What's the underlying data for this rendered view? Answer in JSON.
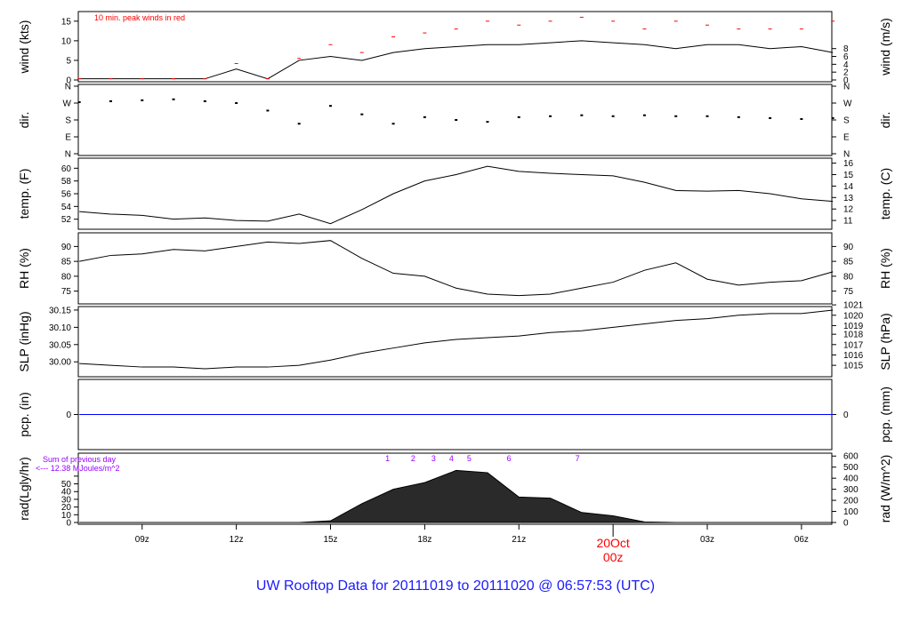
{
  "title": "UW Rooftop Data for 20111019  to  20111020 @ 06:57:53  (UTC)",
  "chart_data": [
    {
      "type": "line",
      "panel": "wind",
      "ylabel": "wind (kts)",
      "ylabel_right": "wind (m/s)",
      "ylim": [
        0,
        17
      ],
      "yticks": [
        0,
        5,
        10,
        15
      ],
      "yticks_right": {
        "values": [
          0,
          2,
          4,
          6,
          8
        ],
        "labels": [
          "0",
          "2",
          "4",
          "6",
          "8"
        ]
      },
      "annotation": "10 min. peak winds in red",
      "series": [
        {
          "name": "wind",
          "color": "#000000",
          "values": [
            0.3,
            0.3,
            0.3,
            0.3,
            0.3,
            2.8,
            0.3,
            5,
            6,
            5,
            7,
            8,
            8.5,
            9,
            9,
            9.5,
            10,
            9.5,
            9,
            8,
            9,
            9,
            8,
            8.5,
            7
          ]
        },
        {
          "name": "10 min. peak winds",
          "color": "#ff0000",
          "values": [
            0.3,
            0.3,
            0.3,
            0.3,
            0.3,
            4.2,
            0.3,
            5.5,
            9,
            7,
            11,
            12,
            13,
            15,
            14,
            15,
            16,
            15,
            13,
            15,
            14,
            13,
            13,
            13,
            15
          ]
        }
      ]
    },
    {
      "type": "scatter",
      "panel": "dir",
      "ylabel": "dir.",
      "ylabel_right": "dir.",
      "ylim": [
        0,
        360
      ],
      "yticks": [
        0,
        90,
        180,
        270,
        360
      ],
      "ytick_labels": [
        "N",
        "E",
        "S",
        "W",
        "N"
      ],
      "series": [
        {
          "values": [
            275,
            280,
            285,
            290,
            280,
            270,
            230,
            160,
            255,
            210,
            160,
            195,
            180,
            170,
            195,
            200,
            205,
            200,
            205,
            200,
            200,
            195,
            190,
            185,
            190
          ]
        }
      ]
    },
    {
      "type": "line",
      "panel": "temp",
      "ylabel": "temp. (F)",
      "ylabel_right": "temp. (C)",
      "ylim": [
        50.7,
        61.3
      ],
      "yticks": [
        52,
        54,
        56,
        58,
        60
      ],
      "yticks_right": {
        "values": [
          51.8,
          53.6,
          55.4,
          57.2,
          59,
          60.8
        ],
        "labels": [
          "11",
          "12",
          "13",
          "14",
          "15",
          "16"
        ]
      },
      "series": [
        {
          "values": [
            53.2,
            52.8,
            52.6,
            52,
            52.2,
            51.8,
            51.7,
            52.8,
            51.3,
            53.5,
            56,
            58,
            59,
            60.3,
            59.5,
            59.2,
            59,
            58.8,
            57.8,
            56.5,
            56.4,
            56.5,
            56,
            55.2,
            54.8
          ]
        }
      ]
    },
    {
      "type": "line",
      "panel": "rh",
      "ylabel": "RH (%)",
      "ylabel_right": "RH (%)",
      "ylim": [
        71.3,
        94
      ],
      "yticks": [
        75,
        80,
        85,
        90
      ],
      "yticks_right": {
        "values": [
          75,
          80,
          85,
          90
        ],
        "labels": [
          "75",
          "80",
          "85",
          "90"
        ]
      },
      "series": [
        {
          "values": [
            85,
            87,
            87.5,
            89,
            88.5,
            90,
            91.5,
            91,
            92,
            86,
            81,
            80,
            76,
            74,
            73.5,
            74,
            76,
            78,
            82,
            84.5,
            79,
            77,
            78,
            78.5,
            81.5
          ]
        }
      ]
    },
    {
      "type": "line",
      "panel": "slp",
      "ylabel": "SLP (inHg)",
      "ylabel_right": "SLP (hPa)",
      "ylim": [
        29.962,
        30.155
      ],
      "yticks": [
        30.0,
        30.05,
        30.1,
        30.15
      ],
      "ytick_labels": [
        "30.00",
        "30.05",
        "30.10",
        "30.15"
      ],
      "yticks_right": {
        "values": [
          29.99,
          30.02,
          30.05,
          30.08,
          30.105,
          30.135,
          30.165
        ],
        "labels": [
          "1015",
          "1016",
          "1017",
          "1018",
          "1019",
          "1020",
          "1021"
        ]
      },
      "series": [
        {
          "values": [
            29.995,
            29.99,
            29.985,
            29.985,
            29.98,
            29.985,
            29.985,
            29.99,
            30.005,
            30.025,
            30.04,
            30.055,
            30.065,
            30.07,
            30.075,
            30.085,
            30.09,
            30.1,
            30.11,
            30.12,
            30.125,
            30.135,
            30.14,
            30.14,
            30.15
          ]
        }
      ]
    },
    {
      "type": "line",
      "panel": "pcp",
      "ylabel": "pcp. (in)",
      "ylabel_right": "pcp. (mm)",
      "ylim": [
        -1,
        1
      ],
      "yticks": [
        0
      ],
      "yticks_right": {
        "values": [
          0
        ],
        "labels": [
          "0"
        ]
      },
      "series": [
        {
          "color": "#0000ff",
          "values": [
            0,
            0,
            0,
            0,
            0,
            0,
            0,
            0,
            0,
            0,
            0,
            0,
            0,
            0,
            0,
            0,
            0,
            0,
            0,
            0,
            0,
            0,
            0,
            0,
            0
          ]
        }
      ]
    },
    {
      "type": "area",
      "panel": "rad",
      "ylabel": "rad(Lgly/hr)",
      "ylabel_right": "rad (W/m^2)",
      "ylim": [
        0,
        610
      ],
      "yticks": [
        0,
        69.8,
        139.5,
        209.3,
        279,
        348.8,
        418.6
      ],
      "ytick_labels": [
        "0",
        "10",
        "20",
        "30",
        "40",
        "50",
        ""
      ],
      "yticks_right": {
        "values": [
          0,
          100,
          200,
          300,
          400,
          500,
          600
        ],
        "labels": [
          "0",
          "100",
          "200",
          "300",
          "400",
          "500",
          "600"
        ]
      },
      "annotation": [
        "Sum of previous day",
        "<--- 12.38 MJoules/m^2"
      ],
      "markers": {
        "labels": [
          "1",
          "2",
          "3",
          "4",
          "5",
          "6",
          "7"
        ],
        "times": [
          "19 16:49",
          "19 17:38",
          "19 18:17",
          "19 18:51",
          "19 19:25",
          "19 20:41",
          "19 22:52"
        ]
      },
      "series": [
        {
          "values": [
            0,
            0,
            0,
            0,
            0,
            0,
            0,
            0,
            15,
            170,
            300,
            360,
            470,
            450,
            230,
            220,
            90,
            60,
            5,
            0,
            0,
            0,
            0,
            0,
            0
          ]
        }
      ]
    }
  ],
  "x": [
    "19 07:00",
    "19 08:00",
    "19 09:00",
    "19 10:00",
    "19 11:00",
    "19 12:00",
    "19 13:00",
    "19 14:00",
    "19 15:00",
    "19 16:00",
    "19 17:00",
    "19 18:00",
    "19 19:00",
    "19 20:00",
    "19 21:00",
    "19 22:00",
    "19 23:00",
    "20 00:00",
    "20 01:00",
    "20 02:00",
    "20 03:00",
    "20 04:00",
    "20 05:00",
    "20 06:00",
    "20 07:00"
  ],
  "xrange": [
    "19 06:58",
    "20 06:58"
  ],
  "xticks": {
    "times": [
      "19 09:00",
      "19 12:00",
      "19 15:00",
      "19 18:00",
      "19 21:00",
      "20 00:00",
      "20 03:00",
      "20 06:00"
    ],
    "labels": [
      "09z",
      "12z",
      "15z",
      "18z",
      "21z",
      "00z",
      "03z",
      "06z"
    ]
  },
  "date_label": {
    "text": "20Oct",
    "time": "00z",
    "color": "#ff0000"
  }
}
